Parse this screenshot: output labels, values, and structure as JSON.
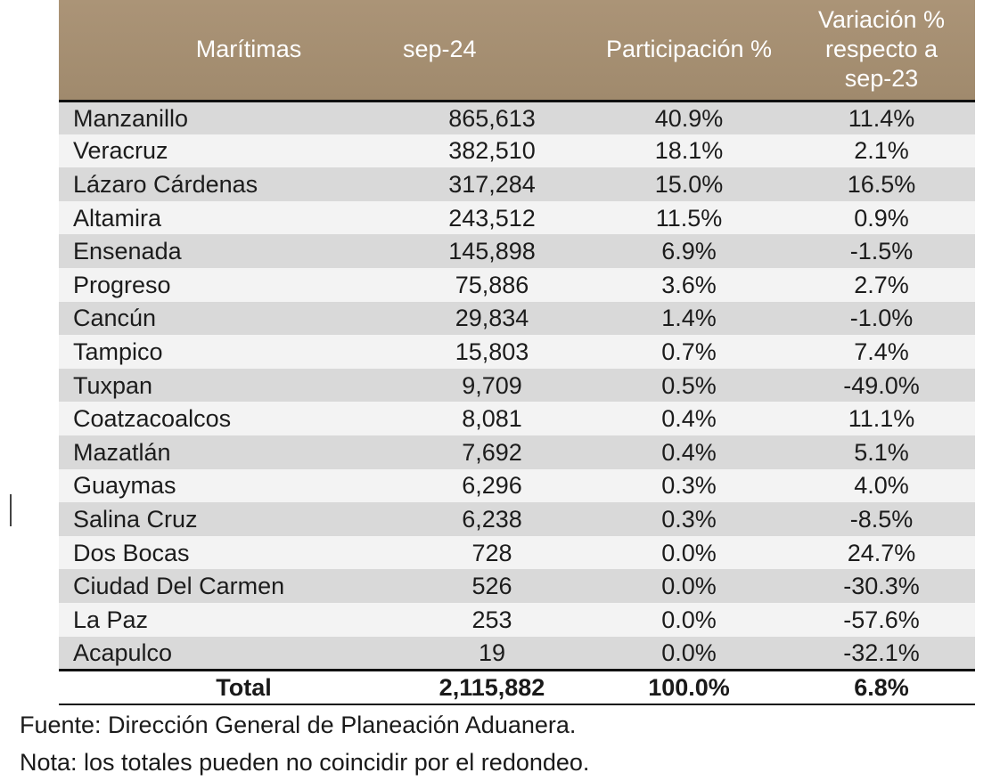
{
  "table": {
    "headers": {
      "name": "Marítimas",
      "period": "sep-24",
      "share": "Participación %",
      "variation_line1": "Variación %",
      "variation_line2": "respecto a",
      "variation_line3": "sep-23"
    },
    "rows": [
      {
        "name": "Manzanillo",
        "value": "865,613",
        "share": "40.9%",
        "variation": "11.4%"
      },
      {
        "name": "Veracruz",
        "value": "382,510",
        "share": "18.1%",
        "variation": "2.1%"
      },
      {
        "name": "Lázaro Cárdenas",
        "value": "317,284",
        "share": "15.0%",
        "variation": "16.5%"
      },
      {
        "name": "Altamira",
        "value": "243,512",
        "share": "11.5%",
        "variation": "0.9%"
      },
      {
        "name": "Ensenada",
        "value": "145,898",
        "share": "6.9%",
        "variation": "-1.5%"
      },
      {
        "name": "Progreso",
        "value": "75,886",
        "share": "3.6%",
        "variation": "2.7%"
      },
      {
        "name": "Cancún",
        "value": "29,834",
        "share": "1.4%",
        "variation": "-1.0%"
      },
      {
        "name": "Tampico",
        "value": "15,803",
        "share": "0.7%",
        "variation": "7.4%"
      },
      {
        "name": "Tuxpan",
        "value": "9,709",
        "share": "0.5%",
        "variation": "-49.0%"
      },
      {
        "name": "Coatzacoalcos",
        "value": "8,081",
        "share": "0.4%",
        "variation": "11.1%"
      },
      {
        "name": "Mazatlán",
        "value": "7,692",
        "share": "0.4%",
        "variation": "5.1%"
      },
      {
        "name": "Guaymas",
        "value": "6,296",
        "share": "0.3%",
        "variation": "4.0%"
      },
      {
        "name": "Salina Cruz",
        "value": "6,238",
        "share": "0.3%",
        "variation": "-8.5%"
      },
      {
        "name": "Dos Bocas",
        "value": "728",
        "share": "0.0%",
        "variation": "24.7%"
      },
      {
        "name": "Ciudad Del Carmen",
        "value": "526",
        "share": "0.0%",
        "variation": "-30.3%"
      },
      {
        "name": "La Paz",
        "value": "253",
        "share": "0.0%",
        "variation": "-57.6%"
      },
      {
        "name": "Acapulco",
        "value": "19",
        "share": "0.0%",
        "variation": "-32.1%"
      }
    ],
    "total": {
      "label": "Total",
      "value": "2,115,882",
      "share": "100.0%",
      "variation": "6.8%"
    }
  },
  "notes": {
    "source": "Fuente: Dirección General de Planeación Aduanera.",
    "note": "Nota: los totales pueden no coincidir por el redondeo."
  },
  "colors": {
    "header_bg": "#a58e71",
    "header_text": "#ffffff",
    "row_dark": "#d9d9d9",
    "row_light": "#f3f3f3"
  }
}
